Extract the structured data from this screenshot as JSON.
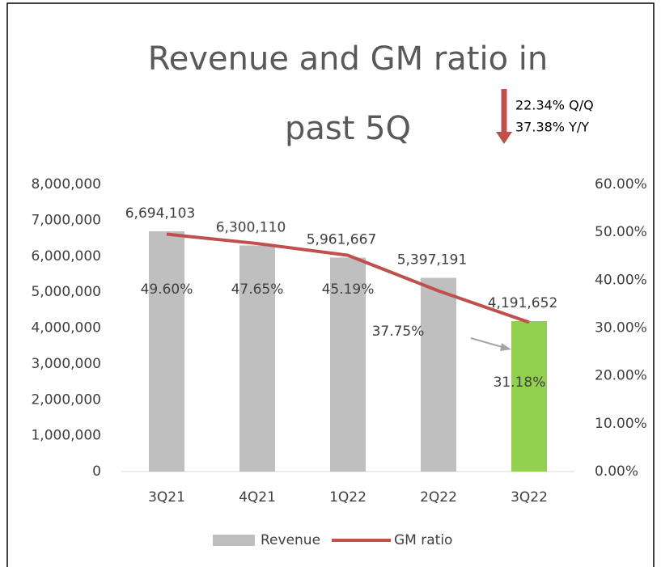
{
  "chart_data": {
    "type": "combo",
    "title": "Revenue and GM ratio in past 5Q",
    "annotations": [
      "22.34% Q/Q",
      "37.38% Y/Y"
    ],
    "categories": [
      "3Q21",
      "4Q21",
      "1Q22",
      "2Q22",
      "3Q22"
    ],
    "series": [
      {
        "name": "Revenue",
        "type": "bar",
        "color": "#bfbfbf",
        "colors": [
          "#bfbfbf",
          "#bfbfbf",
          "#bfbfbf",
          "#bfbfbf",
          "#92d050"
        ],
        "values": [
          6694103,
          6300110,
          5961667,
          5397191,
          4191652
        ],
        "value_labels": [
          "6,694,103",
          "6,300,110",
          "5,961,667",
          "5,397,191",
          "4,191,652"
        ]
      },
      {
        "name": "GM ratio",
        "type": "line",
        "axis": "y2",
        "color": "#c0504d",
        "values": [
          49.6,
          47.65,
          45.19,
          37.75,
          31.18
        ],
        "value_labels": [
          "49.60%",
          "47.65%",
          "45.19%",
          "37.75%",
          "31.18%"
        ]
      }
    ],
    "ylim": [
      0,
      8000000
    ],
    "yticks": [
      0,
      {
        "value": 1000000,
        "label": "1,000,000"
      },
      {
        "value": 2000000,
        "label": "2,000,000"
      },
      {
        "value": 3000000,
        "label": "3,000,000"
      },
      {
        "value": 4000000,
        "label": "4,000,000"
      },
      {
        "value": 5000000,
        "label": "5,000,000"
      },
      {
        "value": 6000000,
        "label": "6,000,000"
      },
      {
        "value": 7000000,
        "label": "7,000,000"
      },
      {
        "value": 8000000,
        "label": "8,000,000"
      }
    ],
    "y2lim": [
      0,
      60
    ],
    "y2ticks": [
      {
        "value": 0,
        "label": "0.00%"
      },
      {
        "value": 10,
        "label": "10.00%"
      },
      {
        "value": 20,
        "label": "20.00%"
      },
      {
        "value": 30,
        "label": "30.00%"
      },
      {
        "value": 40,
        "label": "40.00%"
      },
      {
        "value": 50,
        "label": "50.00%"
      },
      {
        "value": 60,
        "label": "60.00%"
      }
    ],
    "legend": "bottom"
  }
}
